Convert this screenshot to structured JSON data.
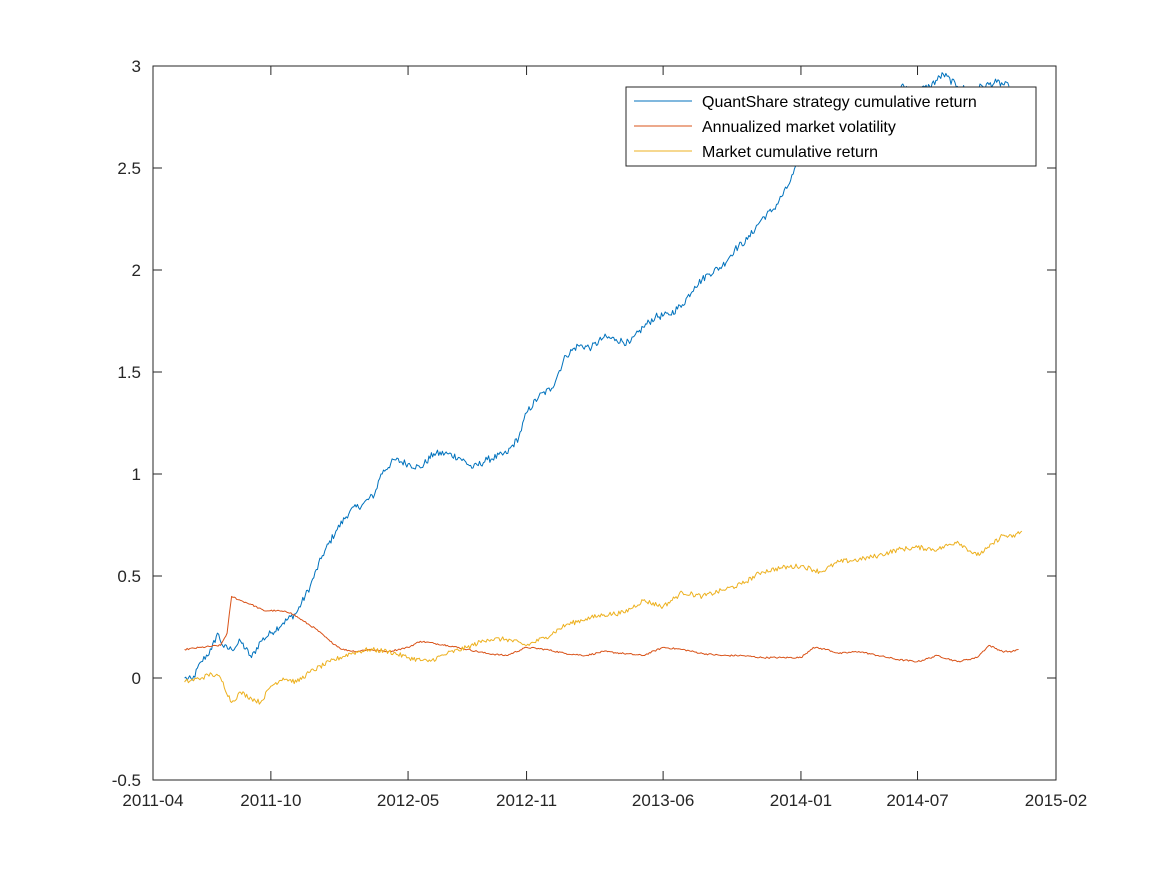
{
  "chart_data": {
    "type": "line",
    "title": "",
    "xlabel": "",
    "ylabel": "",
    "xlim": [
      "2011-04-01",
      "2015-02-01"
    ],
    "ylim": [
      -0.5,
      3
    ],
    "x_ticks": [
      "2011-04",
      "2011-10",
      "2012-05",
      "2012-11",
      "2013-06",
      "2014-01",
      "2014-07",
      "2015-02"
    ],
    "y_ticks": [
      "-0.5",
      "0",
      "0.5",
      "1",
      "1.5",
      "2",
      "2.5",
      "3"
    ],
    "grid": false,
    "legend_position": "top-right",
    "series": [
      {
        "name": "QuantShare strategy cumulative return",
        "color": "#0072BD",
        "points": [
          [
            "2011-05-20",
            0.0
          ],
          [
            "2011-06-01",
            -0.01
          ],
          [
            "2011-06-15",
            0.08
          ],
          [
            "2011-07-01",
            0.14
          ],
          [
            "2011-07-10",
            0.22
          ],
          [
            "2011-07-20",
            0.15
          ],
          [
            "2011-08-01",
            0.14
          ],
          [
            "2011-08-15",
            0.18
          ],
          [
            "2011-09-01",
            0.1
          ],
          [
            "2011-09-15",
            0.18
          ],
          [
            "2011-10-01",
            0.22
          ],
          [
            "2011-10-20",
            0.27
          ],
          [
            "2011-11-10",
            0.32
          ],
          [
            "2011-12-01",
            0.45
          ],
          [
            "2011-12-20",
            0.6
          ],
          [
            "2012-01-10",
            0.72
          ],
          [
            "2012-02-01",
            0.82
          ],
          [
            "2012-02-20",
            0.85
          ],
          [
            "2012-03-10",
            0.9
          ],
          [
            "2012-03-20",
            1.0
          ],
          [
            "2012-04-10",
            1.07
          ],
          [
            "2012-05-01",
            1.05
          ],
          [
            "2012-05-20",
            1.03
          ],
          [
            "2012-06-10",
            1.1
          ],
          [
            "2012-07-01",
            1.1
          ],
          [
            "2012-07-20",
            1.08
          ],
          [
            "2012-08-10",
            1.03
          ],
          [
            "2012-09-01",
            1.07
          ],
          [
            "2012-10-01",
            1.1
          ],
          [
            "2012-10-20",
            1.18
          ],
          [
            "2012-11-01",
            1.3
          ],
          [
            "2012-11-20",
            1.38
          ],
          [
            "2012-12-10",
            1.42
          ],
          [
            "2013-01-01",
            1.58
          ],
          [
            "2013-01-20",
            1.63
          ],
          [
            "2013-02-10",
            1.62
          ],
          [
            "2013-03-01",
            1.67
          ],
          [
            "2013-03-20",
            1.66
          ],
          [
            "2013-04-10",
            1.64
          ],
          [
            "2013-05-01",
            1.72
          ],
          [
            "2013-05-20",
            1.77
          ],
          [
            "2013-06-10",
            1.78
          ],
          [
            "2013-07-01",
            1.83
          ],
          [
            "2013-07-20",
            1.92
          ],
          [
            "2013-08-10",
            1.98
          ],
          [
            "2013-09-01",
            2.02
          ],
          [
            "2013-09-20",
            2.1
          ],
          [
            "2013-10-10",
            2.15
          ],
          [
            "2013-11-01",
            2.25
          ],
          [
            "2013-11-20",
            2.3
          ],
          [
            "2013-12-10",
            2.4
          ],
          [
            "2014-01-01",
            2.55
          ],
          [
            "2014-01-20",
            2.62
          ],
          [
            "2014-02-10",
            2.7
          ],
          [
            "2014-03-01",
            2.78
          ],
          [
            "2014-03-20",
            2.82
          ],
          [
            "2014-04-10",
            2.86
          ],
          [
            "2014-05-01",
            2.88
          ],
          [
            "2014-05-20",
            2.87
          ],
          [
            "2014-06-10",
            2.9
          ],
          [
            "2014-07-01",
            2.88
          ],
          [
            "2014-07-20",
            2.9
          ],
          [
            "2014-08-10",
            2.96
          ],
          [
            "2014-09-01",
            2.9
          ],
          [
            "2014-09-20",
            2.88
          ],
          [
            "2014-10-10",
            2.9
          ],
          [
            "2014-11-01",
            2.92
          ],
          [
            "2014-11-20",
            2.9
          ]
        ]
      },
      {
        "name": "Annualized market volatility",
        "color": "#D95319",
        "points": [
          [
            "2011-05-20",
            0.14
          ],
          [
            "2011-06-15",
            0.15
          ],
          [
            "2011-07-15",
            0.16
          ],
          [
            "2011-07-25",
            0.22
          ],
          [
            "2011-08-01",
            0.4
          ],
          [
            "2011-08-15",
            0.38
          ],
          [
            "2011-09-01",
            0.36
          ],
          [
            "2011-09-20",
            0.33
          ],
          [
            "2011-10-10",
            0.33
          ],
          [
            "2011-11-01",
            0.32
          ],
          [
            "2011-11-20",
            0.28
          ],
          [
            "2011-12-10",
            0.24
          ],
          [
            "2012-01-01",
            0.18
          ],
          [
            "2012-01-20",
            0.14
          ],
          [
            "2012-02-10",
            0.13
          ],
          [
            "2012-03-01",
            0.14
          ],
          [
            "2012-04-01",
            0.13
          ],
          [
            "2012-05-01",
            0.15
          ],
          [
            "2012-05-20",
            0.18
          ],
          [
            "2012-06-10",
            0.17
          ],
          [
            "2012-07-01",
            0.16
          ],
          [
            "2012-08-01",
            0.14
          ],
          [
            "2012-09-01",
            0.12
          ],
          [
            "2012-10-01",
            0.11
          ],
          [
            "2012-11-01",
            0.15
          ],
          [
            "2012-12-01",
            0.14
          ],
          [
            "2013-01-01",
            0.12
          ],
          [
            "2013-02-01",
            0.11
          ],
          [
            "2013-03-01",
            0.13
          ],
          [
            "2013-04-01",
            0.12
          ],
          [
            "2013-05-01",
            0.11
          ],
          [
            "2013-06-01",
            0.15
          ],
          [
            "2013-07-01",
            0.14
          ],
          [
            "2013-08-01",
            0.12
          ],
          [
            "2013-09-01",
            0.11
          ],
          [
            "2013-10-01",
            0.11
          ],
          [
            "2013-11-01",
            0.1
          ],
          [
            "2013-12-01",
            0.1
          ],
          [
            "2014-01-01",
            0.1
          ],
          [
            "2014-01-20",
            0.15
          ],
          [
            "2014-02-10",
            0.14
          ],
          [
            "2014-03-01",
            0.12
          ],
          [
            "2014-04-01",
            0.13
          ],
          [
            "2014-05-01",
            0.11
          ],
          [
            "2014-06-01",
            0.09
          ],
          [
            "2014-07-01",
            0.08
          ],
          [
            "2014-08-01",
            0.11
          ],
          [
            "2014-09-01",
            0.08
          ],
          [
            "2014-10-01",
            0.1
          ],
          [
            "2014-10-20",
            0.16
          ],
          [
            "2014-11-10",
            0.13
          ],
          [
            "2014-11-25",
            0.13
          ],
          [
            "2014-12-05",
            0.14
          ]
        ]
      },
      {
        "name": "Market cumulative return",
        "color": "#EDB120",
        "points": [
          [
            "2011-05-20",
            -0.02
          ],
          [
            "2011-06-15",
            0.0
          ],
          [
            "2011-07-01",
            0.02
          ],
          [
            "2011-07-15",
            0.0
          ],
          [
            "2011-08-01",
            -0.12
          ],
          [
            "2011-08-15",
            -0.07
          ],
          [
            "2011-09-01",
            -0.1
          ],
          [
            "2011-09-15",
            -0.12
          ],
          [
            "2011-10-01",
            -0.04
          ],
          [
            "2011-10-20",
            0.0
          ],
          [
            "2011-11-10",
            -0.02
          ],
          [
            "2011-12-01",
            0.03
          ],
          [
            "2012-01-01",
            0.08
          ],
          [
            "2012-02-01",
            0.12
          ],
          [
            "2012-03-01",
            0.14
          ],
          [
            "2012-04-01",
            0.13
          ],
          [
            "2012-05-01",
            0.1
          ],
          [
            "2012-06-01",
            0.08
          ],
          [
            "2012-07-01",
            0.12
          ],
          [
            "2012-08-01",
            0.15
          ],
          [
            "2012-09-01",
            0.19
          ],
          [
            "2012-10-01",
            0.19
          ],
          [
            "2012-11-01",
            0.16
          ],
          [
            "2012-12-01",
            0.2
          ],
          [
            "2013-01-01",
            0.26
          ],
          [
            "2013-02-01",
            0.29
          ],
          [
            "2013-03-01",
            0.31
          ],
          [
            "2013-04-01",
            0.32
          ],
          [
            "2013-05-01",
            0.38
          ],
          [
            "2013-06-01",
            0.35
          ],
          [
            "2013-07-01",
            0.42
          ],
          [
            "2013-08-01",
            0.4
          ],
          [
            "2013-09-01",
            0.43
          ],
          [
            "2013-10-01",
            0.46
          ],
          [
            "2013-11-01",
            0.52
          ],
          [
            "2013-12-01",
            0.54
          ],
          [
            "2014-01-01",
            0.55
          ],
          [
            "2014-02-01",
            0.52
          ],
          [
            "2014-03-01",
            0.57
          ],
          [
            "2014-04-01",
            0.58
          ],
          [
            "2014-05-01",
            0.6
          ],
          [
            "2014-06-01",
            0.63
          ],
          [
            "2014-07-01",
            0.64
          ],
          [
            "2014-08-01",
            0.63
          ],
          [
            "2014-09-01",
            0.67
          ],
          [
            "2014-10-01",
            0.6
          ],
          [
            "2014-10-20",
            0.64
          ],
          [
            "2014-11-10",
            0.7
          ],
          [
            "2014-11-25",
            0.69
          ],
          [
            "2014-12-10",
            0.72
          ]
        ]
      }
    ]
  }
}
